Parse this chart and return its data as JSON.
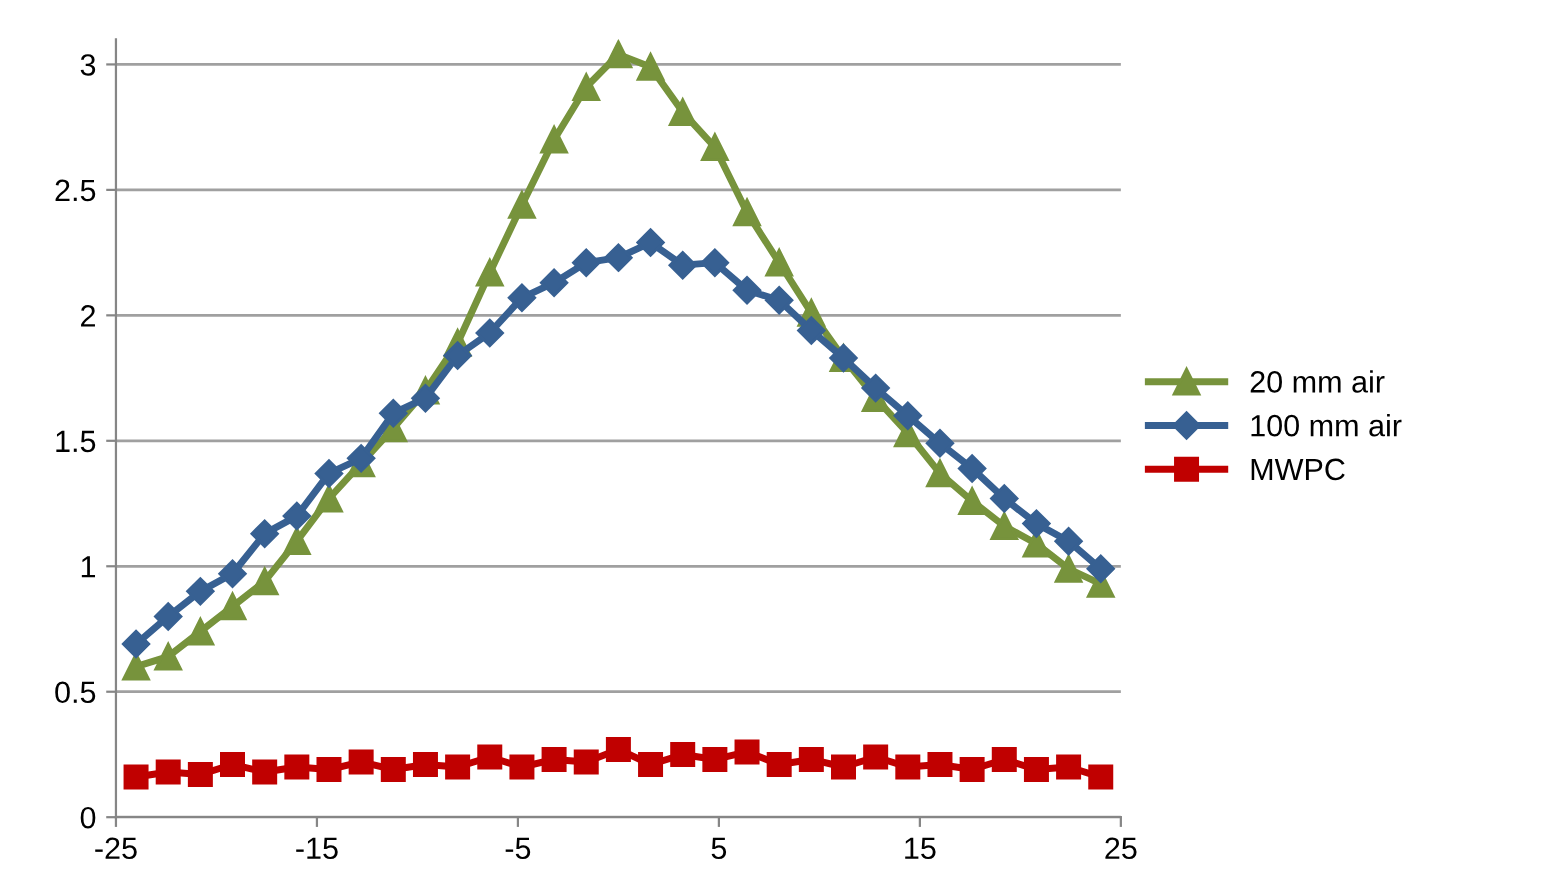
{
  "chart_data": {
    "type": "line",
    "x": [
      -24,
      -22.4,
      -20.8,
      -19.2,
      -17.6,
      -16,
      -14.4,
      -12.8,
      -11.2,
      -9.6,
      -8,
      -6.4,
      -4.8,
      -3.2,
      -1.6,
      0,
      1.6,
      3.2,
      4.8,
      6.4,
      8,
      9.6,
      11.2,
      12.8,
      14.4,
      16,
      17.6,
      19.2,
      20.8,
      22.4,
      24
    ],
    "series": [
      {
        "name": "20 mm air",
        "color": "#77933c",
        "marker": "triangle",
        "values": [
          0.6,
          0.64,
          0.74,
          0.84,
          0.94,
          1.1,
          1.27,
          1.41,
          1.55,
          1.7,
          1.89,
          2.17,
          2.44,
          2.7,
          2.91,
          3.04,
          2.99,
          2.81,
          2.67,
          2.41,
          2.21,
          2.01,
          1.83,
          1.67,
          1.53,
          1.37,
          1.26,
          1.16,
          1.09,
          0.99,
          0.93
        ]
      },
      {
        "name": "100 mm air",
        "color": "#376092",
        "marker": "diamond",
        "values": [
          0.69,
          0.8,
          0.9,
          0.97,
          1.13,
          1.2,
          1.37,
          1.43,
          1.61,
          1.67,
          1.84,
          1.93,
          2.07,
          2.13,
          2.21,
          2.23,
          2.29,
          2.2,
          2.21,
          2.1,
          2.06,
          1.94,
          1.83,
          1.71,
          1.6,
          1.49,
          1.39,
          1.27,
          1.17,
          1.1,
          0.99
        ]
      },
      {
        "name": "MWPC",
        "color": "#c00000",
        "marker": "square",
        "values": [
          0.16,
          0.18,
          0.17,
          0.21,
          0.18,
          0.2,
          0.19,
          0.22,
          0.19,
          0.21,
          0.2,
          0.24,
          0.2,
          0.23,
          0.22,
          0.27,
          0.21,
          0.25,
          0.23,
          0.26,
          0.21,
          0.23,
          0.2,
          0.24,
          0.2,
          0.21,
          0.19,
          0.23,
          0.19,
          0.2,
          0.16
        ]
      }
    ],
    "xlim": [
      -25,
      25
    ],
    "xticks": [
      -25,
      -15,
      -5,
      5,
      15,
      25
    ],
    "ylim": [
      0,
      3.1
    ],
    "yticks": [
      0,
      0.5,
      1,
      1.5,
      2,
      2.5,
      3
    ],
    "grid": "y",
    "legend": "right",
    "line_style": "solid"
  }
}
